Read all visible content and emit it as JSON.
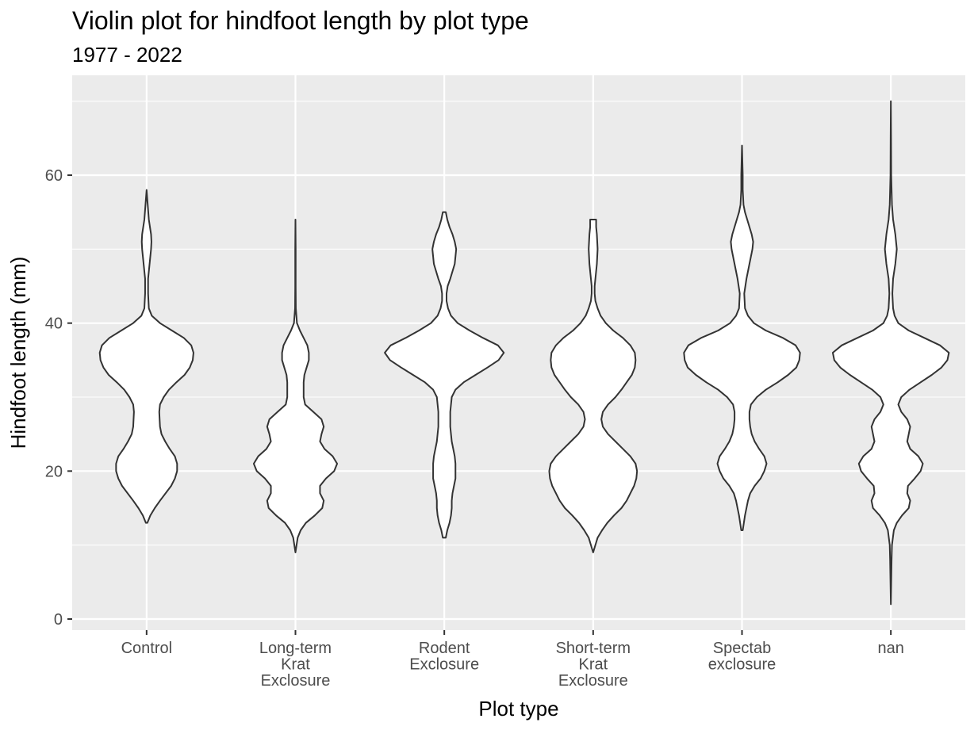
{
  "chart_data": {
    "type": "violin",
    "title": "Violin plot for hindfoot length by plot type",
    "subtitle": "1977 - 2022",
    "xlabel": "Plot type",
    "ylabel": "Hindfoot length (mm)",
    "ylim": [
      -1.5,
      73.5
    ],
    "yticks": [
      0,
      20,
      40,
      60
    ],
    "grid": true,
    "categories": [
      [
        "Control"
      ],
      [
        "Long-term",
        "Krat",
        "Exclosure"
      ],
      [
        "Rodent",
        "Exclosure"
      ],
      [
        "Short-term",
        "Krat",
        "Exclosure"
      ],
      [
        "Spectab",
        "exclosure"
      ],
      [
        "nan"
      ]
    ],
    "series": [
      {
        "category": "Control",
        "range": [
          13,
          58
        ],
        "density_half_width": [
          [
            13,
            0.01
          ],
          [
            14,
            0.05
          ],
          [
            15,
            0.11
          ],
          [
            16,
            0.18
          ],
          [
            18,
            0.33
          ],
          [
            19,
            0.38
          ],
          [
            20,
            0.41
          ],
          [
            21,
            0.41
          ],
          [
            22,
            0.38
          ],
          [
            23,
            0.31
          ],
          [
            24,
            0.25
          ],
          [
            25,
            0.2
          ],
          [
            26,
            0.18
          ],
          [
            28,
            0.17
          ],
          [
            29,
            0.18
          ],
          [
            30,
            0.23
          ],
          [
            31,
            0.3
          ],
          [
            32,
            0.4
          ],
          [
            33,
            0.51
          ],
          [
            34,
            0.58
          ],
          [
            35,
            0.62
          ],
          [
            36,
            0.63
          ],
          [
            37,
            0.6
          ],
          [
            38,
            0.5
          ],
          [
            39,
            0.34
          ],
          [
            40,
            0.18
          ],
          [
            41,
            0.07
          ],
          [
            42,
            0.03
          ],
          [
            44,
            0.02
          ],
          [
            46,
            0.02
          ],
          [
            48,
            0.04
          ],
          [
            50,
            0.06
          ],
          [
            51,
            0.065
          ],
          [
            52,
            0.06
          ],
          [
            54,
            0.03
          ],
          [
            56,
            0.015
          ],
          [
            58,
            0.0
          ]
        ]
      },
      {
        "category": "Long-term Krat Exclosure",
        "range": [
          9,
          54
        ],
        "density_half_width": [
          [
            9,
            0.0
          ],
          [
            11,
            0.03
          ],
          [
            12,
            0.07
          ],
          [
            13,
            0.14
          ],
          [
            14,
            0.26
          ],
          [
            15,
            0.36
          ],
          [
            16,
            0.38
          ],
          [
            17,
            0.33
          ],
          [
            18,
            0.33
          ],
          [
            19,
            0.41
          ],
          [
            20,
            0.52
          ],
          [
            21,
            0.56
          ],
          [
            22,
            0.5
          ],
          [
            23,
            0.39
          ],
          [
            24,
            0.33
          ],
          [
            25,
            0.35
          ],
          [
            26,
            0.38
          ],
          [
            27,
            0.35
          ],
          [
            28,
            0.24
          ],
          [
            29,
            0.13
          ],
          [
            30,
            0.11
          ],
          [
            31,
            0.11
          ],
          [
            32,
            0.11
          ],
          [
            33,
            0.12
          ],
          [
            34,
            0.15
          ],
          [
            35,
            0.18
          ],
          [
            36,
            0.18
          ],
          [
            37,
            0.16
          ],
          [
            38,
            0.11
          ],
          [
            39,
            0.06
          ],
          [
            40,
            0.02
          ],
          [
            42,
            0.005
          ],
          [
            45,
            0.003
          ],
          [
            50,
            0.003
          ],
          [
            54,
            0.0
          ]
        ]
      },
      {
        "category": "Rodent Exclosure",
        "range": [
          11,
          55
        ],
        "density_half_width": [
          [
            11,
            0.02
          ],
          [
            12,
            0.04
          ],
          [
            13,
            0.07
          ],
          [
            14,
            0.09
          ],
          [
            15,
            0.1
          ],
          [
            16,
            0.1
          ],
          [
            17,
            0.11
          ],
          [
            18,
            0.13
          ],
          [
            19,
            0.15
          ],
          [
            20,
            0.15
          ],
          [
            21,
            0.15
          ],
          [
            22,
            0.14
          ],
          [
            23,
            0.12
          ],
          [
            24,
            0.1
          ],
          [
            25,
            0.09
          ],
          [
            26,
            0.08
          ],
          [
            27,
            0.08
          ],
          [
            28,
            0.08
          ],
          [
            29,
            0.09
          ],
          [
            30,
            0.1
          ],
          [
            31,
            0.15
          ],
          [
            32,
            0.26
          ],
          [
            33,
            0.42
          ],
          [
            34,
            0.58
          ],
          [
            35,
            0.73
          ],
          [
            36,
            0.8
          ],
          [
            37,
            0.72
          ],
          [
            38,
            0.52
          ],
          [
            39,
            0.34
          ],
          [
            40,
            0.18
          ],
          [
            41,
            0.09
          ],
          [
            42,
            0.05
          ],
          [
            43,
            0.03
          ],
          [
            44,
            0.03
          ],
          [
            45,
            0.045
          ],
          [
            46,
            0.08
          ],
          [
            48,
            0.14
          ],
          [
            50,
            0.16
          ],
          [
            51,
            0.14
          ],
          [
            52,
            0.11
          ],
          [
            53,
            0.07
          ],
          [
            54,
            0.04
          ],
          [
            55,
            0.02
          ]
        ]
      },
      {
        "category": "Short-term Krat Exclosure",
        "range": [
          9,
          54
        ],
        "density_half_width": [
          [
            9,
            0.0
          ],
          [
            11,
            0.06
          ],
          [
            12,
            0.12
          ],
          [
            13,
            0.19
          ],
          [
            14,
            0.28
          ],
          [
            15,
            0.38
          ],
          [
            16,
            0.45
          ],
          [
            17,
            0.5
          ],
          [
            18,
            0.55
          ],
          [
            19,
            0.58
          ],
          [
            20,
            0.59
          ],
          [
            21,
            0.57
          ],
          [
            22,
            0.5
          ],
          [
            23,
            0.4
          ],
          [
            24,
            0.3
          ],
          [
            25,
            0.2
          ],
          [
            26,
            0.13
          ],
          [
            27,
            0.11
          ],
          [
            28,
            0.13
          ],
          [
            29,
            0.2
          ],
          [
            30,
            0.3
          ],
          [
            31,
            0.38
          ],
          [
            32,
            0.45
          ],
          [
            33,
            0.52
          ],
          [
            34,
            0.56
          ],
          [
            35,
            0.57
          ],
          [
            36,
            0.56
          ],
          [
            37,
            0.5
          ],
          [
            38,
            0.4
          ],
          [
            39,
            0.27
          ],
          [
            40,
            0.17
          ],
          [
            41,
            0.1
          ],
          [
            42,
            0.06
          ],
          [
            43,
            0.03
          ],
          [
            44,
            0.02
          ],
          [
            45,
            0.02
          ],
          [
            46,
            0.03
          ],
          [
            48,
            0.05
          ],
          [
            50,
            0.06
          ],
          [
            52,
            0.05
          ],
          [
            53,
            0.04
          ],
          [
            54,
            0.04
          ]
        ]
      },
      {
        "category": "Spectab exclosure",
        "range": [
          12,
          64
        ],
        "density_half_width": [
          [
            12,
            0.01
          ],
          [
            14,
            0.04
          ],
          [
            16,
            0.08
          ],
          [
            17,
            0.11
          ],
          [
            18,
            0.17
          ],
          [
            19,
            0.25
          ],
          [
            20,
            0.3
          ],
          [
            21,
            0.33
          ],
          [
            22,
            0.3
          ],
          [
            23,
            0.23
          ],
          [
            24,
            0.17
          ],
          [
            25,
            0.13
          ],
          [
            26,
            0.11
          ],
          [
            27,
            0.1
          ],
          [
            28,
            0.1
          ],
          [
            29,
            0.12
          ],
          [
            30,
            0.2
          ],
          [
            31,
            0.32
          ],
          [
            32,
            0.48
          ],
          [
            33,
            0.62
          ],
          [
            34,
            0.73
          ],
          [
            35,
            0.77
          ],
          [
            36,
            0.78
          ],
          [
            37,
            0.72
          ],
          [
            38,
            0.55
          ],
          [
            39,
            0.32
          ],
          [
            40,
            0.16
          ],
          [
            41,
            0.08
          ],
          [
            42,
            0.04
          ],
          [
            44,
            0.03
          ],
          [
            46,
            0.06
          ],
          [
            48,
            0.1
          ],
          [
            50,
            0.14
          ],
          [
            51,
            0.15
          ],
          [
            52,
            0.13
          ],
          [
            54,
            0.07
          ],
          [
            55,
            0.04
          ],
          [
            56,
            0.02
          ],
          [
            58,
            0.01
          ],
          [
            60,
            0.01
          ],
          [
            62,
            0.005
          ],
          [
            64,
            0.0
          ]
        ]
      },
      {
        "category": "nan",
        "range": [
          2,
          70
        ],
        "density_half_width": [
          [
            2,
            0.0
          ],
          [
            5,
            0.005
          ],
          [
            8,
            0.01
          ],
          [
            10,
            0.015
          ],
          [
            12,
            0.04
          ],
          [
            13,
            0.08
          ],
          [
            14,
            0.15
          ],
          [
            15,
            0.24
          ],
          [
            16,
            0.26
          ],
          [
            17,
            0.22
          ],
          [
            18,
            0.23
          ],
          [
            19,
            0.32
          ],
          [
            20,
            0.4
          ],
          [
            21,
            0.43
          ],
          [
            22,
            0.37
          ],
          [
            23,
            0.26
          ],
          [
            24,
            0.22
          ],
          [
            25,
            0.24
          ],
          [
            26,
            0.26
          ],
          [
            27,
            0.22
          ],
          [
            28,
            0.14
          ],
          [
            29,
            0.1
          ],
          [
            30,
            0.14
          ],
          [
            31,
            0.25
          ],
          [
            32,
            0.4
          ],
          [
            33,
            0.55
          ],
          [
            34,
            0.68
          ],
          [
            35,
            0.76
          ],
          [
            36,
            0.78
          ],
          [
            37,
            0.66
          ],
          [
            38,
            0.45
          ],
          [
            39,
            0.24
          ],
          [
            40,
            0.1
          ],
          [
            41,
            0.05
          ],
          [
            42,
            0.03
          ],
          [
            44,
            0.02
          ],
          [
            46,
            0.03
          ],
          [
            48,
            0.06
          ],
          [
            50,
            0.08
          ],
          [
            52,
            0.06
          ],
          [
            54,
            0.03
          ],
          [
            56,
            0.015
          ],
          [
            60,
            0.005
          ],
          [
            65,
            0.003
          ],
          [
            70,
            0.0
          ]
        ]
      }
    ]
  }
}
